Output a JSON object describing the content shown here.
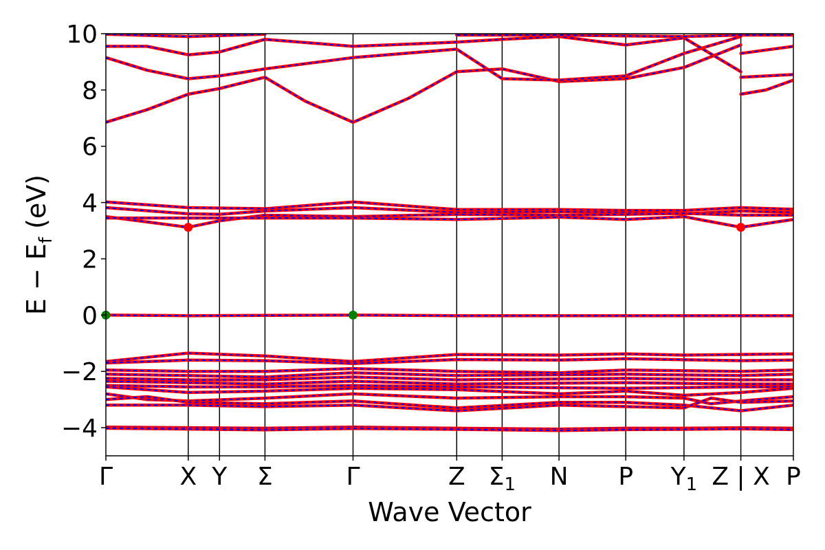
{
  "chart_data": {
    "type": "line",
    "title": "",
    "xlabel": "Wave Vector",
    "ylabel": "E − E",
    "ylabel_subscript": "f",
    "ylabel_unit": " (eV)",
    "ylim": [
      -5,
      10
    ],
    "yticks": [
      -4,
      -2,
      0,
      2,
      4,
      6,
      8,
      10
    ],
    "ytick_labels": [
      "−4",
      "−2",
      "0",
      "2",
      "4",
      "6",
      "8",
      "10"
    ],
    "xlim": [
      0,
      1
    ],
    "kpoints": [
      {
        "label": "Γ",
        "sub": "",
        "x": 0.0
      },
      {
        "label": "X",
        "sub": "",
        "x": 0.1198
      },
      {
        "label": "Y",
        "sub": "",
        "x": 0.1653
      },
      {
        "label": "Σ",
        "sub": "",
        "x": 0.2314
      },
      {
        "label": "Γ",
        "sub": "",
        "x": 0.3595
      },
      {
        "label": "Z",
        "sub": "",
        "x": 0.5103
      },
      {
        "label": "Σ",
        "sub": "1",
        "x": 0.5764
      },
      {
        "label": "N",
        "sub": "",
        "x": 0.6591
      },
      {
        "label": "P",
        "sub": "",
        "x": 0.7562
      },
      {
        "label": "Y",
        "sub": "1",
        "x": 0.8409
      },
      {
        "label": "Z | X",
        "sub": "",
        "x": 0.9236
      },
      {
        "label": "P",
        "sub": "",
        "x": 1.0
      }
    ],
    "series_colors": [
      "#ff0000",
      "#0000ff"
    ],
    "highlight_colors": {
      "cbm": "#ff0000",
      "vbm": "#008000"
    },
    "highlight_points": [
      {
        "kind": "cbm",
        "x": 0.1198,
        "y": 3.12
      },
      {
        "kind": "cbm",
        "x": 0.9236,
        "y": 3.12
      },
      {
        "kind": "vbm",
        "x": 0.0,
        "y": 0.0
      },
      {
        "kind": "vbm",
        "x": 0.3595,
        "y": 0.0
      }
    ],
    "bands": [
      {
        "name": "b1",
        "points": [
          [
            0,
            6.85
          ],
          [
            0.06,
            7.3
          ],
          [
            0.1198,
            7.85
          ],
          [
            0.1653,
            8.05
          ],
          [
            0.2314,
            8.45
          ],
          [
            0.29,
            7.6
          ],
          [
            0.3595,
            6.85
          ],
          [
            0.44,
            7.7
          ],
          [
            0.5103,
            8.65
          ],
          [
            0.5764,
            8.75
          ],
          [
            0.6591,
            8.3
          ],
          [
            0.7562,
            8.4
          ],
          [
            0.8409,
            8.8
          ],
          [
            0.9236,
            9.6
          ]
        ]
      },
      {
        "name": "b2",
        "points": [
          [
            0,
            9.15
          ],
          [
            0.06,
            8.7
          ],
          [
            0.1198,
            8.4
          ],
          [
            0.1653,
            8.5
          ],
          [
            0.2314,
            8.75
          ],
          [
            0.3595,
            9.15
          ],
          [
            0.5103,
            9.45
          ],
          [
            0.5764,
            8.4
          ],
          [
            0.6591,
            8.35
          ],
          [
            0.7562,
            8.5
          ],
          [
            0.8409,
            9.3
          ],
          [
            0.9236,
            9.9
          ]
        ]
      },
      {
        "name": "b3",
        "points": [
          [
            0,
            9.55
          ],
          [
            0.06,
            9.55
          ],
          [
            0.1198,
            9.25
          ],
          [
            0.1653,
            9.35
          ],
          [
            0.2314,
            9.8
          ],
          [
            0.3595,
            9.55
          ],
          [
            0.5103,
            9.7
          ],
          [
            0.5764,
            9.8
          ],
          [
            0.6591,
            9.9
          ],
          [
            0.7562,
            9.6
          ],
          [
            0.8409,
            9.85
          ],
          [
            0.9236,
            8.65
          ]
        ]
      },
      {
        "name": "b4",
        "points": [
          [
            0,
            9.98
          ],
          [
            0.1198,
            9.9
          ],
          [
            0.2314,
            9.98
          ]
        ]
      },
      {
        "name": "b5",
        "points": [
          [
            0.9236,
            7.85
          ],
          [
            0.96,
            8.0
          ],
          [
            1.0,
            8.35
          ]
        ]
      },
      {
        "name": "b6",
        "points": [
          [
            0.9236,
            8.45
          ],
          [
            1.0,
            8.55
          ]
        ]
      },
      {
        "name": "b7",
        "points": [
          [
            0.9236,
            9.3
          ],
          [
            1.0,
            9.55
          ]
        ]
      },
      {
        "name": "b8",
        "points": [
          [
            0.5103,
            9.95
          ],
          [
            0.6591,
            9.95
          ],
          [
            0.7562,
            9.92
          ],
          [
            0.8409,
            9.9
          ],
          [
            0.9236,
            9.95
          ],
          [
            1.0,
            9.95
          ]
        ]
      },
      {
        "name": "b9",
        "points": [
          [
            0,
            4.02
          ],
          [
            0.1198,
            3.82
          ],
          [
            0.2314,
            3.78
          ],
          [
            0.3595,
            4.02
          ],
          [
            0.5103,
            3.75
          ],
          [
            0.6591,
            3.75
          ],
          [
            0.7562,
            3.72
          ],
          [
            0.8409,
            3.72
          ],
          [
            0.9236,
            3.82
          ],
          [
            1.0,
            3.76
          ]
        ]
      },
      {
        "name": "b10",
        "points": [
          [
            0,
            3.82
          ],
          [
            0.1198,
            3.6
          ],
          [
            0.1653,
            3.58
          ],
          [
            0.2314,
            3.7
          ],
          [
            0.3595,
            3.82
          ],
          [
            0.5103,
            3.65
          ],
          [
            0.6591,
            3.68
          ],
          [
            0.7562,
            3.65
          ],
          [
            0.8409,
            3.6
          ],
          [
            0.9236,
            3.7
          ],
          [
            1.0,
            3.65
          ]
        ]
      },
      {
        "name": "b11",
        "points": [
          [
            0,
            3.5
          ],
          [
            0.1198,
            3.12
          ],
          [
            0.1653,
            3.35
          ],
          [
            0.2314,
            3.55
          ],
          [
            0.3595,
            3.5
          ],
          [
            0.5103,
            3.58
          ],
          [
            0.6591,
            3.55
          ],
          [
            0.7562,
            3.58
          ],
          [
            0.8409,
            3.62
          ],
          [
            0.9236,
            3.55
          ],
          [
            1.0,
            3.55
          ]
        ]
      },
      {
        "name": "b12",
        "points": [
          [
            0,
            3.45
          ],
          [
            0.1198,
            3.45
          ],
          [
            0.2314,
            3.45
          ],
          [
            0.3595,
            3.45
          ],
          [
            0.5103,
            3.4
          ],
          [
            0.6591,
            3.48
          ],
          [
            0.7562,
            3.4
          ],
          [
            0.8409,
            3.5
          ],
          [
            0.9236,
            3.12
          ],
          [
            1.0,
            3.4
          ]
        ]
      },
      {
        "name": "b13",
        "points": [
          [
            0,
            0.0
          ],
          [
            0.1198,
            -0.02
          ],
          [
            0.3595,
            0.0
          ],
          [
            0.5103,
            -0.02
          ],
          [
            0.7562,
            -0.02
          ],
          [
            0.9236,
            -0.02
          ],
          [
            1.0,
            -0.02
          ]
        ]
      },
      {
        "name": "b14",
        "points": [
          [
            0,
            -1.65
          ],
          [
            0.1198,
            -1.35
          ],
          [
            0.2314,
            -1.45
          ],
          [
            0.3595,
            -1.65
          ],
          [
            0.5103,
            -1.4
          ],
          [
            0.6591,
            -1.42
          ],
          [
            0.7562,
            -1.38
          ],
          [
            0.8409,
            -1.42
          ],
          [
            0.9236,
            -1.4
          ],
          [
            1.0,
            -1.38
          ]
        ]
      },
      {
        "name": "b15",
        "points": [
          [
            0,
            -1.7
          ],
          [
            0.1198,
            -1.6
          ],
          [
            0.2314,
            -1.62
          ],
          [
            0.3595,
            -1.72
          ],
          [
            0.5103,
            -1.58
          ],
          [
            0.6591,
            -1.6
          ],
          [
            0.7562,
            -1.55
          ],
          [
            0.9236,
            -1.62
          ],
          [
            1.0,
            -1.6
          ]
        ]
      },
      {
        "name": "b16",
        "points": [
          [
            0,
            -1.95
          ],
          [
            0.1198,
            -2.0
          ],
          [
            0.2314,
            -2.0
          ],
          [
            0.3595,
            -1.9
          ],
          [
            0.5103,
            -2.0
          ],
          [
            0.6591,
            -2.05
          ],
          [
            0.7562,
            -1.95
          ],
          [
            0.9236,
            -2.0
          ],
          [
            1.0,
            -1.95
          ]
        ]
      },
      {
        "name": "b17",
        "points": [
          [
            0,
            -2.1
          ],
          [
            0.1198,
            -2.15
          ],
          [
            0.2314,
            -2.2
          ],
          [
            0.3595,
            -2.05
          ],
          [
            0.5103,
            -2.15
          ],
          [
            0.7562,
            -2.1
          ],
          [
            0.9236,
            -2.15
          ],
          [
            1.0,
            -2.1
          ]
        ]
      },
      {
        "name": "b18",
        "points": [
          [
            0,
            -2.25
          ],
          [
            0.1198,
            -2.3
          ],
          [
            0.2314,
            -2.3
          ],
          [
            0.3595,
            -2.2
          ],
          [
            0.5103,
            -2.3
          ],
          [
            0.7562,
            -2.25
          ],
          [
            0.9236,
            -2.3
          ],
          [
            1.0,
            -2.3
          ]
        ]
      },
      {
        "name": "b19",
        "points": [
          [
            0,
            -2.35
          ],
          [
            0.1198,
            -2.4
          ],
          [
            0.2314,
            -2.45
          ],
          [
            0.3595,
            -2.35
          ],
          [
            0.5103,
            -2.45
          ],
          [
            0.7562,
            -2.4
          ],
          [
            0.9236,
            -2.45
          ],
          [
            1.0,
            -2.45
          ]
        ]
      },
      {
        "name": "b20",
        "points": [
          [
            0,
            -2.5
          ],
          [
            0.1198,
            -2.55
          ],
          [
            0.2314,
            -2.55
          ],
          [
            0.3595,
            -2.5
          ],
          [
            0.5103,
            -2.55
          ],
          [
            0.7562,
            -2.6
          ],
          [
            0.9236,
            -2.55
          ],
          [
            1.0,
            -2.55
          ]
        ]
      },
      {
        "name": "b21",
        "points": [
          [
            0,
            -2.55
          ],
          [
            0.1198,
            -2.75
          ],
          [
            0.2314,
            -2.7
          ],
          [
            0.3595,
            -2.6
          ],
          [
            0.5103,
            -2.65
          ],
          [
            0.6591,
            -2.8
          ],
          [
            0.7562,
            -2.7
          ],
          [
            0.8409,
            -2.85
          ],
          [
            0.9236,
            -2.75
          ],
          [
            1.0,
            -2.6
          ]
        ]
      },
      {
        "name": "b22",
        "points": [
          [
            0,
            -2.8
          ],
          [
            0.06,
            -3.0
          ],
          [
            0.1198,
            -3.05
          ],
          [
            0.2314,
            -2.95
          ],
          [
            0.3595,
            -2.8
          ],
          [
            0.5103,
            -2.95
          ],
          [
            0.6591,
            -2.9
          ],
          [
            0.7562,
            -2.9
          ],
          [
            0.8409,
            -2.95
          ],
          [
            0.88,
            -3.15
          ],
          [
            0.9236,
            -3.05
          ],
          [
            1.0,
            -2.9
          ]
        ]
      },
      {
        "name": "b23",
        "points": [
          [
            0,
            -3.0
          ],
          [
            0.06,
            -2.9
          ],
          [
            0.1198,
            -3.1
          ],
          [
            0.2314,
            -3.15
          ],
          [
            0.3595,
            -3.05
          ],
          [
            0.5103,
            -3.3
          ],
          [
            0.6591,
            -3.1
          ],
          [
            0.7562,
            -3.1
          ],
          [
            0.8409,
            -3.2
          ],
          [
            0.9236,
            -3.4
          ],
          [
            1.0,
            -3.2
          ]
        ]
      },
      {
        "name": "b24",
        "points": [
          [
            0,
            -3.2
          ],
          [
            0.1198,
            -3.2
          ],
          [
            0.2314,
            -3.25
          ],
          [
            0.3595,
            -3.2
          ],
          [
            0.5103,
            -3.4
          ],
          [
            0.6591,
            -3.2
          ],
          [
            0.7562,
            -3.25
          ],
          [
            0.8409,
            -3.3
          ],
          [
            0.88,
            -2.95
          ],
          [
            0.9236,
            -3.1
          ],
          [
            1.0,
            -3.05
          ]
        ]
      },
      {
        "name": "b25",
        "points": [
          [
            0,
            -3.98
          ],
          [
            0.1198,
            -4.0
          ],
          [
            0.2314,
            -4.02
          ],
          [
            0.3595,
            -3.98
          ],
          [
            0.5103,
            -4.02
          ],
          [
            0.6591,
            -4.05
          ],
          [
            0.7562,
            -4.02
          ],
          [
            0.8409,
            -4.02
          ],
          [
            0.9236,
            -4.0
          ],
          [
            1.0,
            -4.02
          ]
        ]
      },
      {
        "name": "b26",
        "points": [
          [
            0,
            -4.02
          ],
          [
            0.1198,
            -4.05
          ],
          [
            0.2314,
            -4.08
          ],
          [
            0.3595,
            -4.03
          ],
          [
            0.5103,
            -4.06
          ],
          [
            0.6591,
            -4.1
          ],
          [
            0.7562,
            -4.07
          ],
          [
            0.8409,
            -4.06
          ],
          [
            0.9236,
            -4.04
          ],
          [
            1.0,
            -4.07
          ]
        ]
      }
    ]
  }
}
